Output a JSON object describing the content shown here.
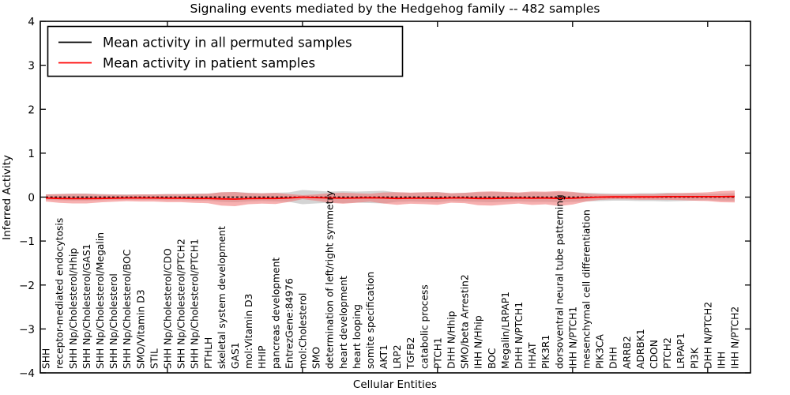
{
  "title": "Signaling events mediated by the Hedgehog family -- 482 samples",
  "legend": {
    "items": [
      {
        "label": "Mean activity in all permuted samples",
        "color": "#000000"
      },
      {
        "label": "Mean activity in patient samples",
        "color": "#ff0000"
      }
    ]
  },
  "chart_data": {
    "type": "line",
    "title": "Signaling events mediated by the Hedgehog family -- 482 samples",
    "xlabel": "Cellular Entities",
    "ylabel": "Inferred Activity",
    "ylim": [
      -4,
      4
    ],
    "grid": false,
    "legend_position": "upper left",
    "yticks": [
      {
        "v": 4,
        "label": "4"
      },
      {
        "v": 3,
        "label": "3"
      },
      {
        "v": 2,
        "label": "2"
      },
      {
        "v": 1,
        "label": "1"
      },
      {
        "v": 0,
        "label": "0"
      },
      {
        "v": -1,
        "label": "−1"
      },
      {
        "v": -2,
        "label": "−2"
      },
      {
        "v": -3,
        "label": "−3"
      },
      {
        "v": -4,
        "label": "−4"
      }
    ],
    "x_major_tick_indices": [
      9,
      19,
      29,
      39,
      49
    ],
    "categories": [
      "SHH",
      "receptor-mediated endocytosis",
      "SHH Np/Cholesterol/Hhip",
      "SHH Np/Cholesterol/GAS1",
      "SHH Np/Cholesterol/Megalin",
      "SHH Np/Cholesterol",
      "SHH Np/Cholesterol/BOC",
      "SMO/Vitamin D3",
      "STIL",
      "SHH Np/Cholesterol/CDO",
      "SHH Np/Cholesterol/PTCH2",
      "SHH Np/Cholesterol/PTCH1",
      "PTHLH",
      "skeletal system development",
      "GAS1",
      "mol:Vitamin D3",
      "HHIP",
      "pancreas development",
      "EntrezGene:84976",
      "mol:Cholesterol",
      "SMO",
      "determination of left/right symmetry",
      "heart development",
      "heart looping",
      "somite specification",
      "AKT1",
      "LRP2",
      "TGFB2",
      "catabolic process",
      "PTCH1",
      "DHH N/Hhip",
      "SMO/beta Arrestin2",
      "IHH N/Hhip",
      "BOC",
      "Megalin/LRPAP1",
      "DHH N/PTCH1",
      "HHAT",
      "PIK3R1",
      "dorsoventral neural tube patterning",
      "IHH N/PTCH1",
      "mesenchymal cell differentiation",
      "PIK3CA",
      "DHH",
      "ARRB2",
      "ADRBK1",
      "CDON",
      "PTCH2",
      "LRPAP1",
      "PI3K",
      "DHH N/PTCH2",
      "IHH",
      "IHH N/PTCH2"
    ],
    "series": [
      {
        "name": "Mean activity in all permuted samples",
        "color": "#000000",
        "style": "dashed",
        "values": [
          0,
          0,
          0,
          0,
          0,
          0,
          0,
          0,
          0,
          0,
          0,
          0,
          0,
          0,
          0,
          0,
          0,
          0,
          0,
          0,
          0,
          0,
          0,
          0,
          0,
          0,
          0,
          0,
          0,
          0,
          0,
          0,
          0,
          0,
          0,
          0,
          0,
          0,
          0,
          0,
          0,
          0,
          0,
          0,
          0,
          0,
          0,
          0,
          0,
          0,
          0,
          0
        ]
      },
      {
        "name": "Mean activity in patient samples",
        "color": "#ff0000",
        "style": "solid",
        "values": [
          -0.02,
          -0.03,
          -0.035,
          -0.035,
          -0.03,
          -0.025,
          -0.02,
          -0.02,
          -0.02,
          -0.025,
          -0.025,
          -0.03,
          -0.03,
          -0.04,
          -0.045,
          -0.035,
          -0.03,
          -0.03,
          -0.02,
          0,
          -0.01,
          -0.02,
          -0.025,
          -0.02,
          -0.015,
          -0.02,
          -0.03,
          -0.025,
          -0.025,
          -0.03,
          -0.02,
          -0.02,
          -0.03,
          -0.03,
          -0.025,
          -0.02,
          -0.025,
          -0.02,
          -0.03,
          -0.025,
          -0.01,
          0,
          0.005,
          0.005,
          0.005,
          0.005,
          0.01,
          0.01,
          0.01,
          0.01,
          0.01,
          0.015
        ]
      }
    ],
    "bands": [
      {
        "name": "permuted-samples-spread",
        "color": "#aaaaaa",
        "opacity": 0.5,
        "center_series": 0,
        "halfwidths": [
          0.063,
          0.072,
          0.081,
          0.081,
          0.072,
          0.063,
          0.063,
          0.063,
          0.063,
          0.072,
          0.072,
          0.081,
          0.081,
          0.108,
          0.117,
          0.099,
          0.09,
          0.099,
          0.108,
          0.162,
          0.144,
          0.126,
          0.135,
          0.126,
          0.135,
          0.144,
          0.108,
          0.099,
          0.108,
          0.117,
          0.09,
          0.099,
          0.108,
          0.117,
          0.108,
          0.099,
          0.108,
          0.108,
          0.117,
          0.108,
          0.099,
          0.09,
          0.081,
          0.081,
          0.09,
          0.09,
          0.099,
          0.09,
          0.081,
          0.072,
          0.081,
          0.09
        ]
      },
      {
        "name": "patient-samples-spread",
        "color": "#f07070",
        "opacity": 0.55,
        "center_series": 1,
        "halfwidths": [
          0.081,
          0.099,
          0.108,
          0.108,
          0.09,
          0.081,
          0.072,
          0.081,
          0.081,
          0.09,
          0.09,
          0.099,
          0.108,
          0.153,
          0.162,
          0.126,
          0.117,
          0.126,
          0.09,
          0.045,
          0.072,
          0.108,
          0.126,
          0.108,
          0.09,
          0.126,
          0.144,
          0.126,
          0.135,
          0.144,
          0.108,
          0.117,
          0.153,
          0.162,
          0.144,
          0.126,
          0.153,
          0.144,
          0.171,
          0.144,
          0.09,
          0.063,
          0.054,
          0.054,
          0.063,
          0.063,
          0.072,
          0.081,
          0.09,
          0.099,
          0.126,
          0.135
        ]
      }
    ]
  }
}
